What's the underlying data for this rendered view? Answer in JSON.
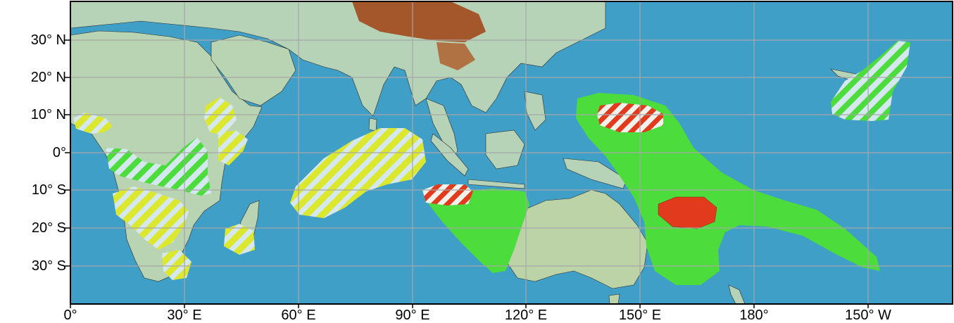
{
  "lat_labels": [
    "30° N",
    "20° N",
    "10° N",
    "0°",
    "10° S",
    "20° S",
    "30° S"
  ],
  "lon_labels": [
    "0°",
    "30° E",
    "60° E",
    "90° E",
    "120° E",
    "150° E",
    "180°",
    "150° W"
  ],
  "colors": {
    "ocean": "#3f9fc7",
    "land": "#b6d3b8",
    "highland": "#a4572a",
    "green_area": "#4cdc3c",
    "yellow_area": "#dce82e",
    "red_area": "#e23a1c",
    "hatch_stripe": "#d5e7ef",
    "grid": "#a7a7a7",
    "border": "#000000"
  },
  "legend_note": ""
}
